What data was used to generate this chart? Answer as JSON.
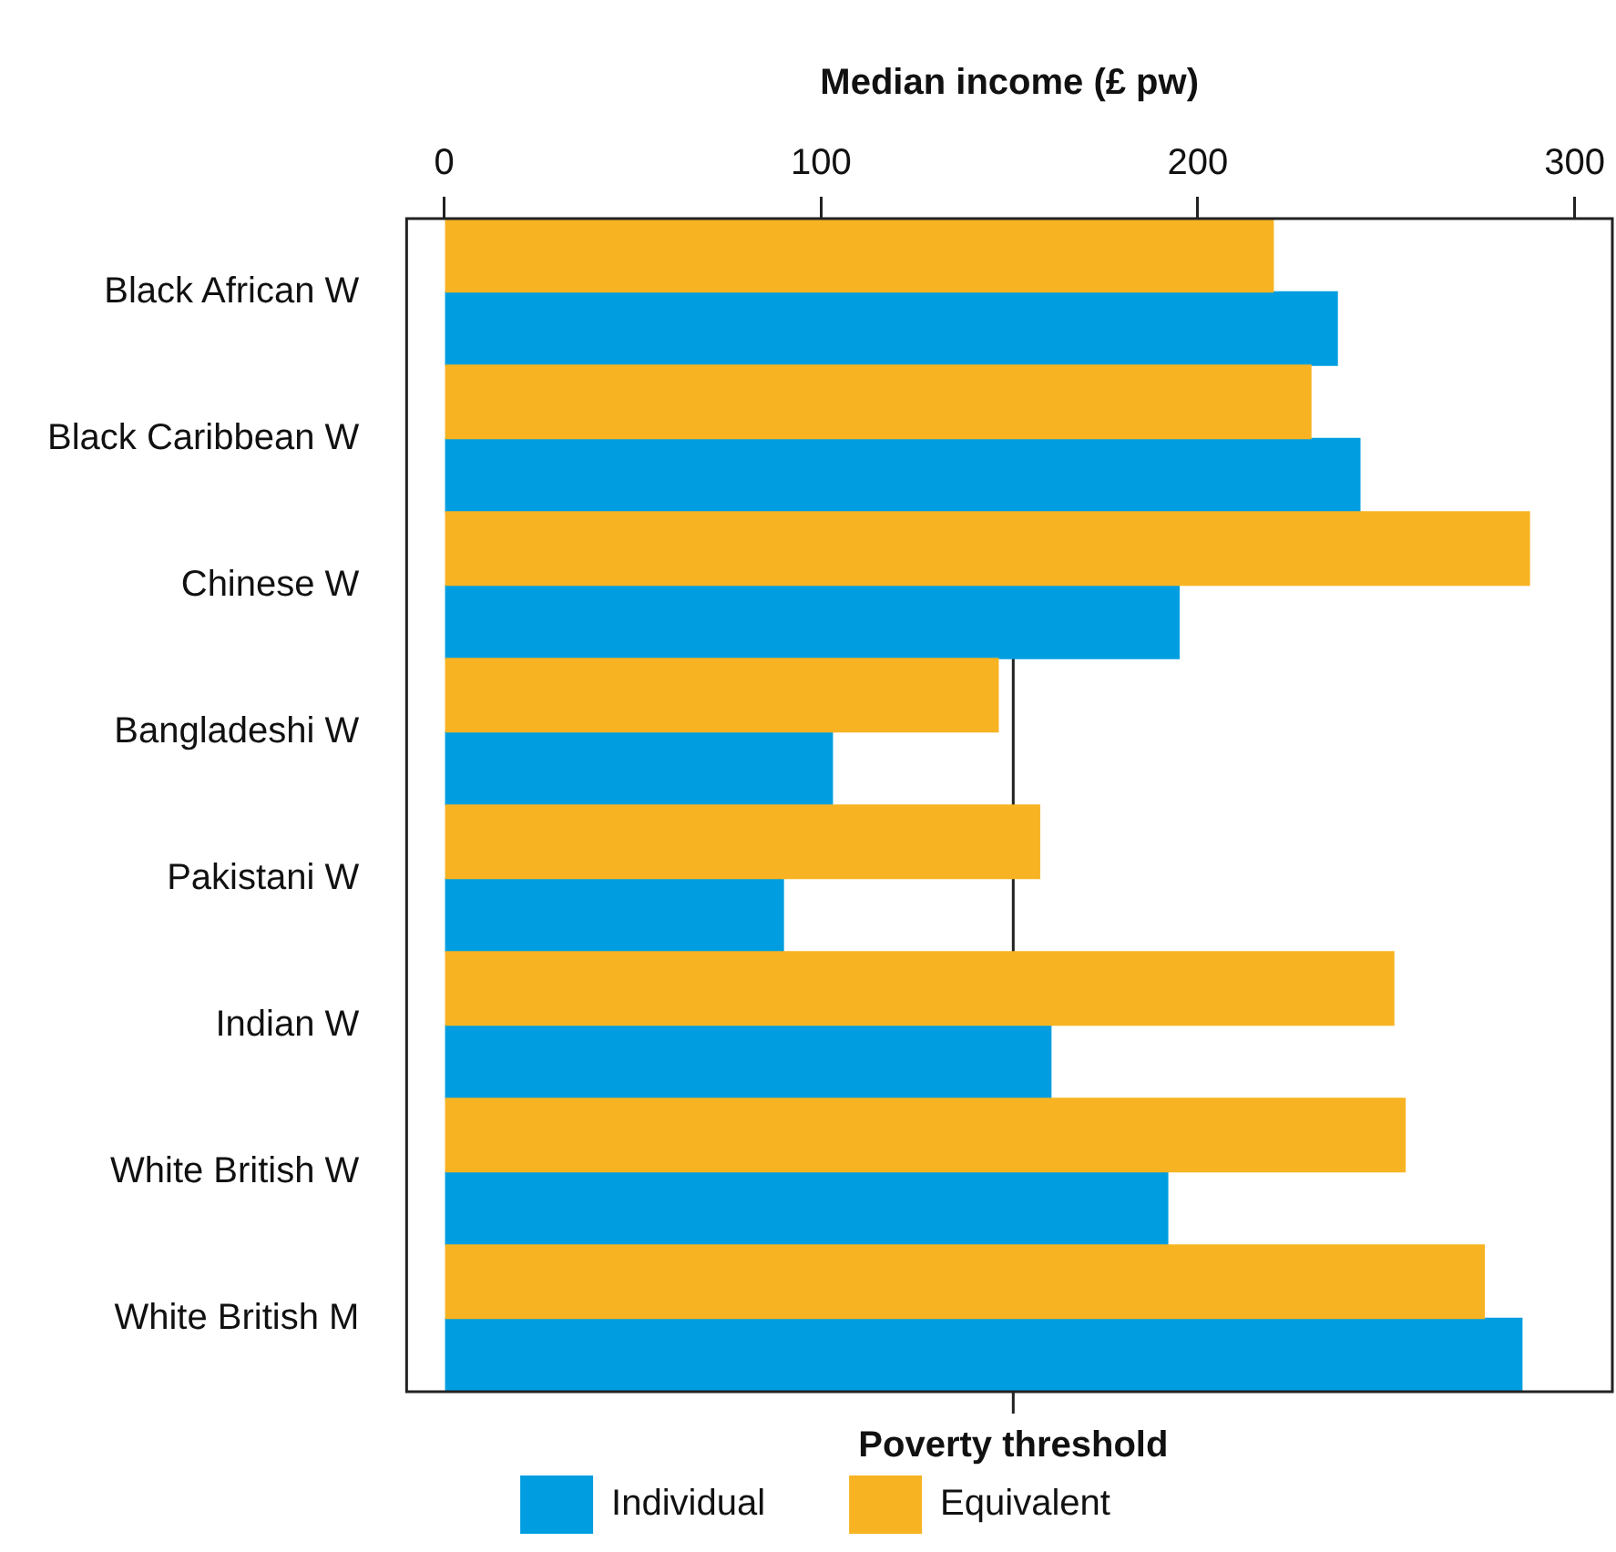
{
  "chart_data": {
    "type": "bar",
    "orientation": "horizontal",
    "xlabel": "Median income (£ pw)",
    "categories": [
      "Black African W",
      "Black Caribbean W",
      "Chinese W",
      "Bangladeshi W",
      "Pakistani W",
      "Indian W",
      "White British W",
      "White British M"
    ],
    "series": [
      {
        "name": "Equivalent",
        "color": "#f7b322",
        "values": [
          220,
          230,
          288,
          147,
          158,
          252,
          255,
          276
        ]
      },
      {
        "name": "Individual",
        "color": "#009ee0",
        "values": [
          237,
          243,
          195,
          103,
          90,
          161,
          192,
          286
        ]
      }
    ],
    "xlim": [
      -10,
      310
    ],
    "xticks": [
      0,
      100,
      200,
      300
    ],
    "grid": false,
    "legend": "bottom",
    "ref_lines": [
      {
        "axis": "x",
        "value": 151,
        "label": "Poverty threshold"
      }
    ]
  }
}
